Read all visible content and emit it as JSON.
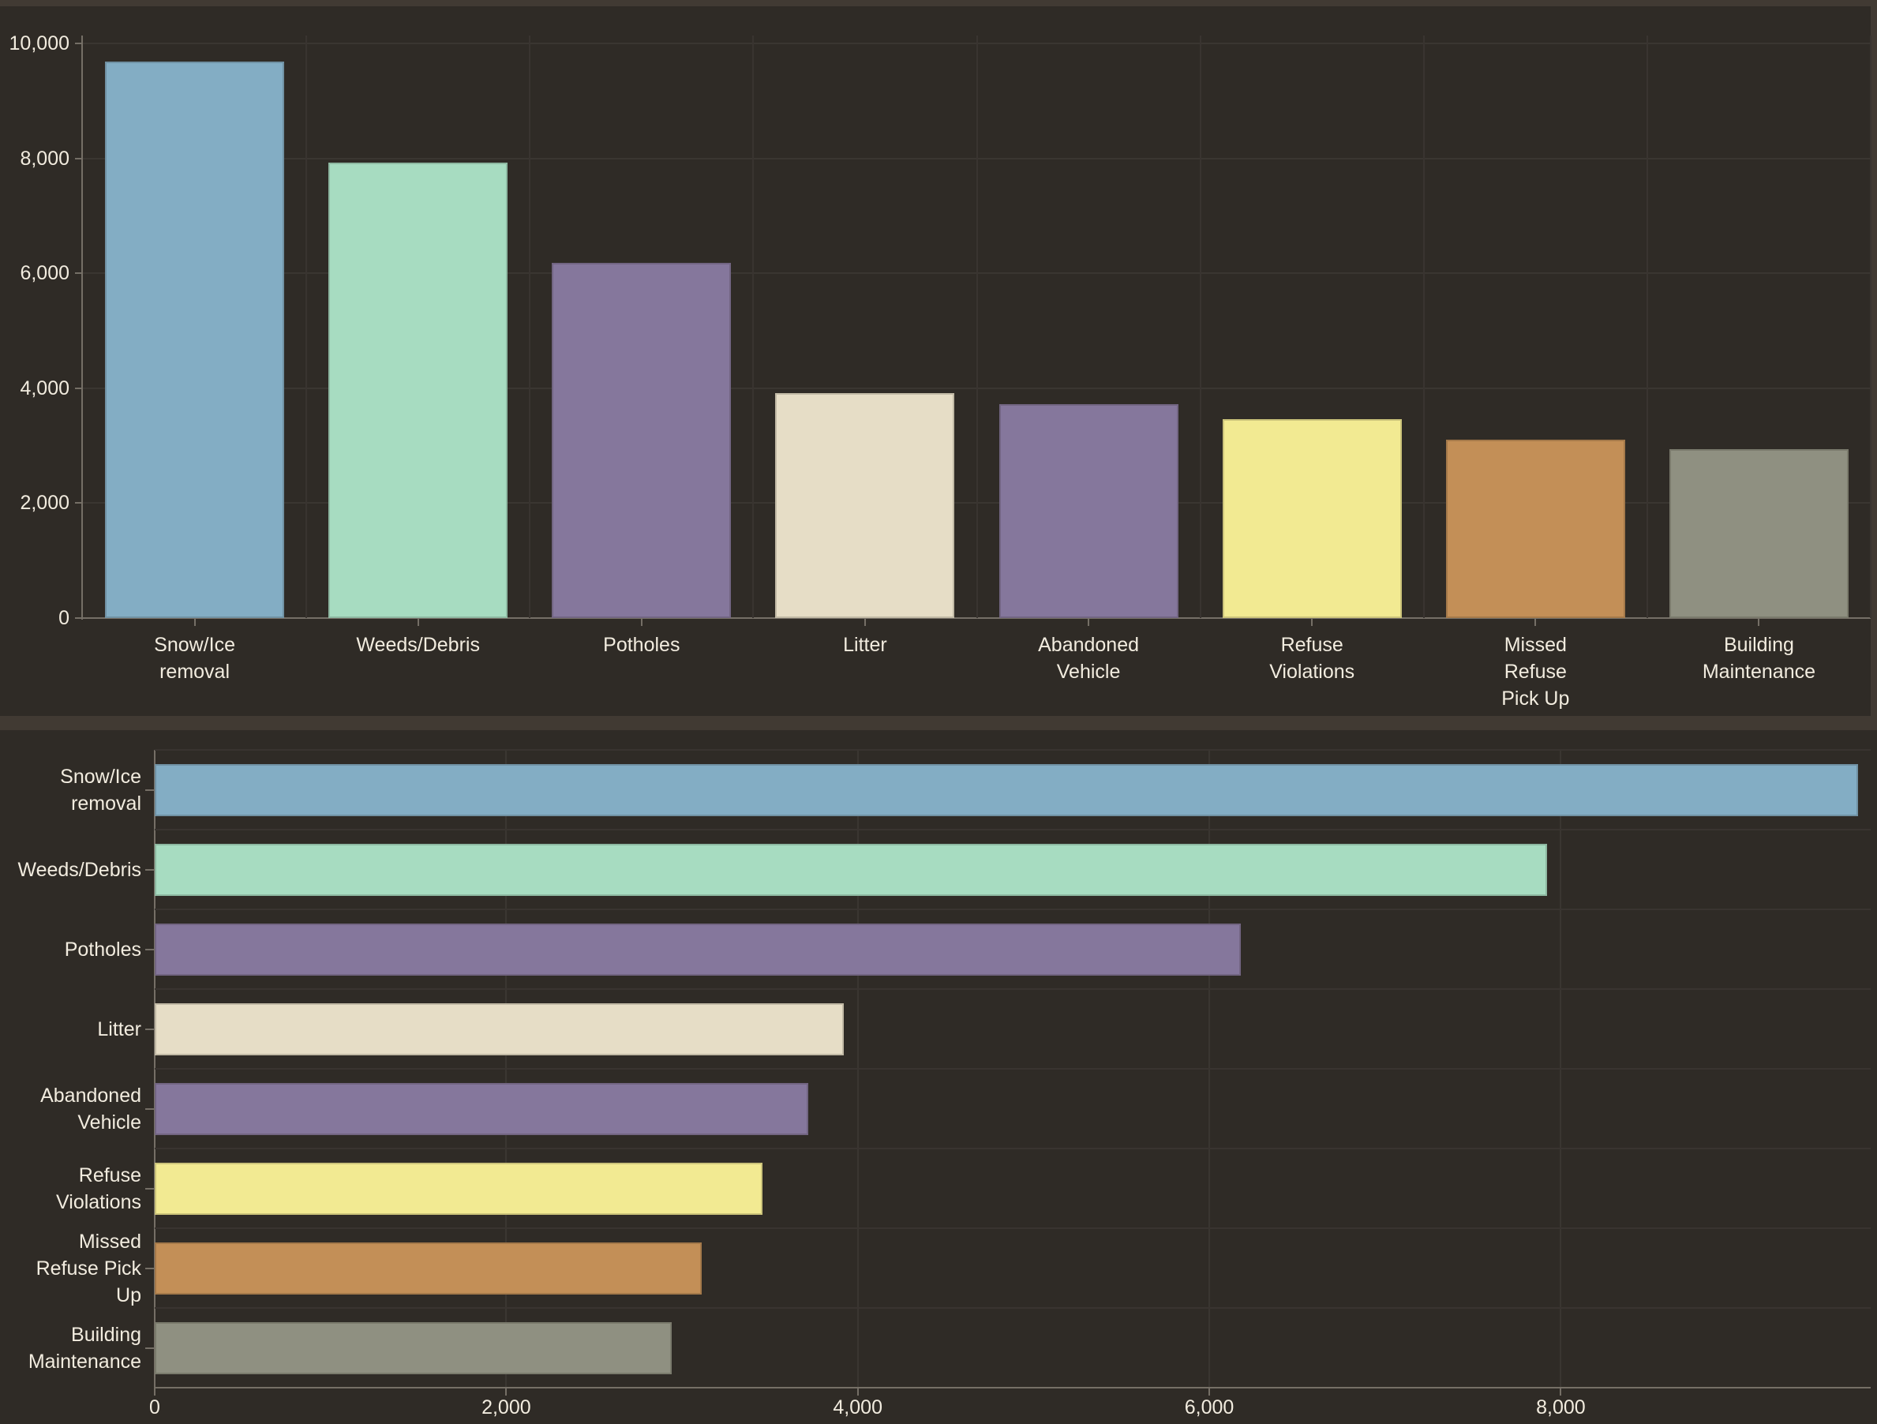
{
  "page": {
    "background_color": "#413a33",
    "panel_color": "#2f2b26",
    "gridline_color": "#3a3631",
    "axis_color": "#756f66",
    "text_color": "#f2ecdf"
  },
  "chart_data": [
    {
      "type": "bar",
      "orientation": "vertical",
      "title": "",
      "xlabel": "",
      "ylabel": "",
      "categories": [
        "Snow/Ice removal",
        "Weeds/Debris",
        "Potholes",
        "Litter",
        "Abandoned Vehicle",
        "Refuse Violations",
        "Missed Refuse Pick Up",
        "Building Maintenance"
      ],
      "label_lines": [
        [
          "Snow/Ice",
          "removal"
        ],
        [
          "Weeds/Debris"
        ],
        [
          "Potholes"
        ],
        [
          "Litter"
        ],
        [
          "Abandoned",
          "Vehicle"
        ],
        [
          "Refuse",
          "Violations"
        ],
        [
          "Missed",
          "Refuse",
          "Pick Up"
        ],
        [
          "Building",
          "Maintenance"
        ]
      ],
      "values": [
        9690,
        7920,
        6180,
        3920,
        3720,
        3460,
        3110,
        2940
      ],
      "colors": [
        "#83adc4",
        "#a7dcc1",
        "#85779c",
        "#e6ddc6",
        "#85779c",
        "#f2ea92",
        "#c38f57",
        "#8f9081"
      ],
      "ylim": [
        0,
        10000
      ],
      "grid_values": [
        0,
        2000,
        4000,
        6000,
        8000,
        10000
      ],
      "tick_labels": [
        "0",
        "2,000",
        "4,000",
        "6,000",
        "8,000",
        "10,000"
      ],
      "grid": true,
      "legend": false
    },
    {
      "type": "bar",
      "orientation": "horizontal",
      "title": "",
      "xlabel": "",
      "ylabel": "",
      "categories": [
        "Snow/Ice removal",
        "Weeds/Debris",
        "Potholes",
        "Litter",
        "Abandoned Vehicle",
        "Refuse Violations",
        "Missed Refuse Pick Up",
        "Building Maintenance"
      ],
      "label_lines": [
        [
          "Snow/Ice",
          "removal"
        ],
        [
          "Weeds/Debris"
        ],
        [
          "Potholes"
        ],
        [
          "Litter"
        ],
        [
          "Abandoned",
          "Vehicle"
        ],
        [
          "Refuse",
          "Violations"
        ],
        [
          "Missed",
          "Refuse Pick",
          "Up"
        ],
        [
          "Building",
          "Maintenance"
        ]
      ],
      "values": [
        9690,
        7920,
        6180,
        3920,
        3720,
        3460,
        3110,
        2940
      ],
      "colors": [
        "#83adc4",
        "#a7dcc1",
        "#85779c",
        "#e6ddc6",
        "#85779c",
        "#f2ea92",
        "#c38f57",
        "#8f9081"
      ],
      "xlim": [
        0,
        9763
      ],
      "grid_values": [
        0,
        2000,
        4000,
        6000,
        8000
      ],
      "tick_labels": [
        "0",
        "2,000",
        "4,000",
        "6,000",
        "8,000"
      ],
      "grid": true,
      "legend": false
    }
  ]
}
